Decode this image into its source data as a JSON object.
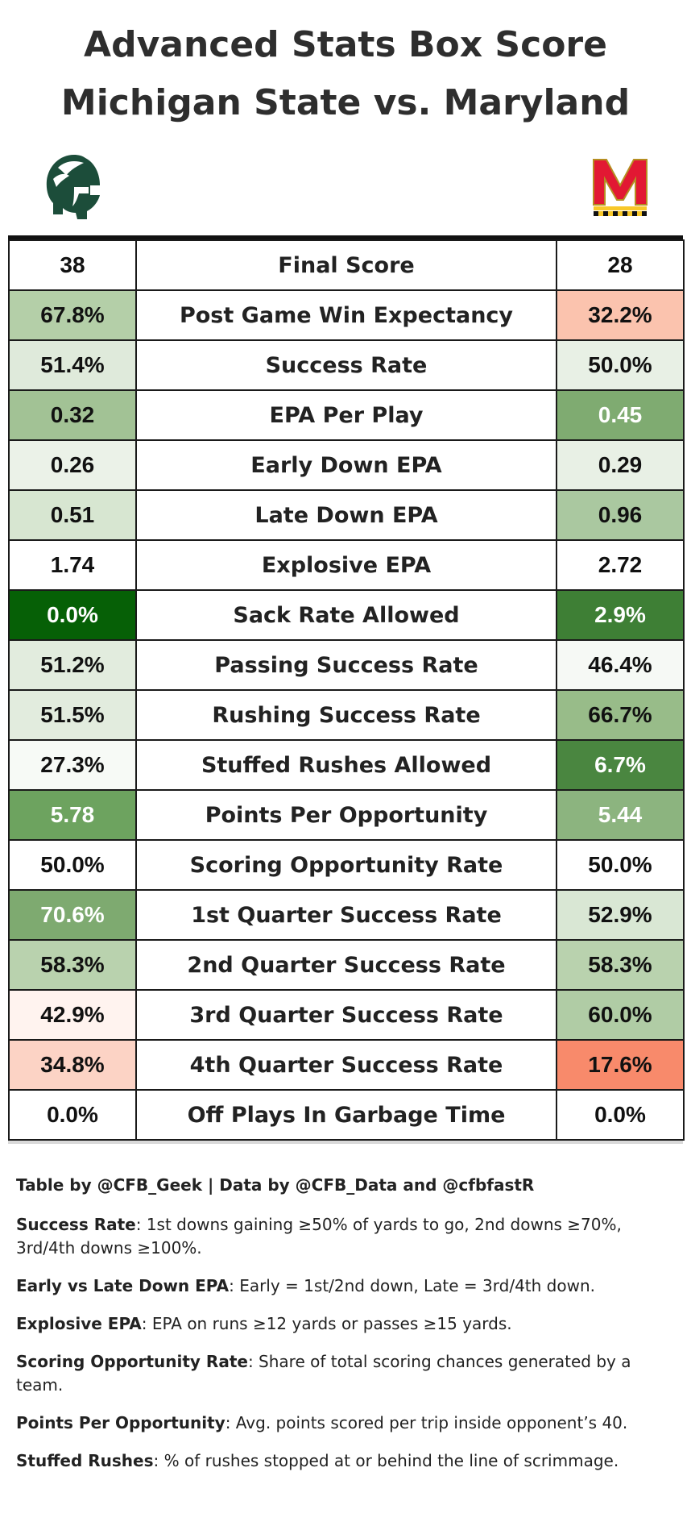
{
  "title_line1": "Advanced Stats Box Score",
  "title_line2": "Michigan State vs. Maryland",
  "colors": {
    "green_1": "#e9f1e6",
    "green_2": "#dce9d7",
    "green_3": "#b6cfaa",
    "green_4": "#8cb37e",
    "green_5": "#3f7c34",
    "green_6": "#065c06",
    "red_1": "#fdeae4",
    "red_2": "#fbc1ad",
    "red_3": "#f88666",
    "neutral": "#ffffff"
  },
  "rows": [
    {
      "left": "38",
      "label": "Final Score",
      "right": "28",
      "left_color": "#ffffff",
      "right_color": "#ffffff"
    },
    {
      "left": "67.8%",
      "label": "Post Game Win Expectancy",
      "right": "32.2%",
      "left_color": "#b4cfa8",
      "right_color": "#fbc3ae"
    },
    {
      "left": "51.4%",
      "label": "Success Rate",
      "right": "50.0%",
      "left_color": "#dfeadb",
      "right_color": "#e8f0e5"
    },
    {
      "left": "0.32",
      "label": "EPA Per Play",
      "right": "0.45",
      "left_color": "#a2c295",
      "right_color": "#7fab71",
      "right_light": true
    },
    {
      "left": "0.26",
      "label": "Early Down EPA",
      "right": "0.29",
      "left_color": "#ebf2e8",
      "right_color": "#e8f0e5"
    },
    {
      "left": "0.51",
      "label": "Late Down EPA",
      "right": "0.96",
      "left_color": "#d7e6d1",
      "right_color": "#aac8a0"
    },
    {
      "left": "1.74",
      "label": "Explosive EPA",
      "right": "2.72",
      "left_color": "#ffffff",
      "right_color": "#ffffff"
    },
    {
      "left": "0.0%",
      "label": "Sack Rate Allowed",
      "right": "2.9%",
      "left_color": "#066006",
      "right_color": "#3e7f35",
      "left_light": true,
      "right_light": true
    },
    {
      "left": "51.2%",
      "label": "Passing Success Rate",
      "right": "46.4%",
      "left_color": "#e2ecde",
      "right_color": "#f6f9f5"
    },
    {
      "left": "51.5%",
      "label": "Rushing Success Rate",
      "right": "66.7%",
      "left_color": "#e2ecde",
      "right_color": "#98bc89"
    },
    {
      "left": "27.3%",
      "label": "Stuffed Rushes Allowed",
      "right": "6.7%",
      "left_color": "#f7faf6",
      "right_color": "#4a8640",
      "right_light": true
    },
    {
      "left": "5.78",
      "label": "Points Per Opportunity",
      "right": "5.44",
      "left_color": "#6da35f",
      "right_color": "#8cb47f",
      "left_light": true,
      "right_light": true
    },
    {
      "left": "50.0%",
      "label": "Scoring Opportunity Rate",
      "right": "50.0%",
      "left_color": "#ffffff",
      "right_color": "#ffffff"
    },
    {
      "left": "70.6%",
      "label": "1st Quarter Success Rate",
      "right": "52.9%",
      "left_color": "#7eaa70",
      "right_color": "#d9e7d4",
      "left_light": true
    },
    {
      "left": "58.3%",
      "label": "2nd Quarter Success Rate",
      "right": "58.3%",
      "left_color": "#b9d2ae",
      "right_color": "#b9d2ae"
    },
    {
      "left": "42.9%",
      "label": "3rd Quarter Success Rate",
      "right": "60.0%",
      "left_color": "#fff3ef",
      "right_color": "#b0cca5"
    },
    {
      "left": "34.8%",
      "label": "4th Quarter Success Rate",
      "right": "17.6%",
      "left_color": "#fcd3c5",
      "right_color": "#f88a6b"
    },
    {
      "left": "0.0%",
      "label": "Off Plays In Garbage Time",
      "right": "0.0%",
      "left_color": "#ffffff",
      "right_color": "#ffffff"
    }
  ],
  "notes": {
    "credit": "Table by @CFB_Geek | Data by @CFB_Data and @cfbfastR",
    "items": [
      {
        "term": "Success Rate",
        "text": ": 1st downs gaining ≥50% of yards to go, 2nd downs ≥70%, 3rd/4th downs ≥100%."
      },
      {
        "term": "Early vs Late Down EPA",
        "text": ": Early = 1st/2nd down, Late = 3rd/4th down."
      },
      {
        "term": "Explosive EPA",
        "text": ": EPA on runs ≥12 yards or passes ≥15 yards."
      },
      {
        "term": "Scoring Opportunity Rate",
        "text": ": Share of total scoring chances generated by a team."
      },
      {
        "term": "Points Per Opportunity",
        "text": ": Avg. points scored per trip inside opponent’s 40."
      },
      {
        "term": "Stuffed Rushes",
        "text": ": % of rushes stopped at or behind the line of scrimmage."
      }
    ]
  },
  "logos": {
    "left": "spartan-helmet-icon",
    "right": "maryland-m-icon"
  }
}
